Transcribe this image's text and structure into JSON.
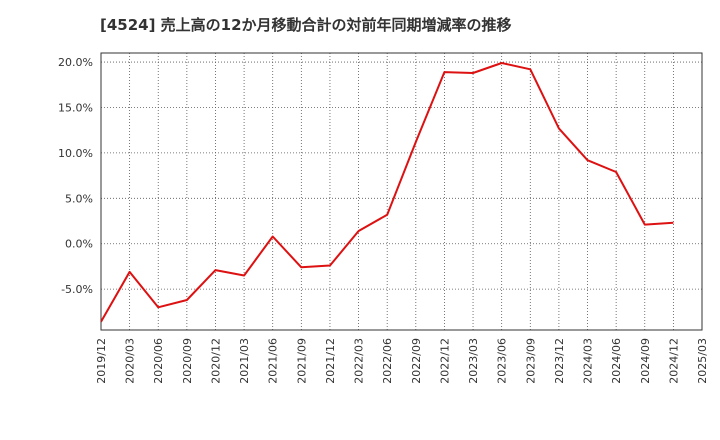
{
  "title": "[4524]  売上高の12か月移動合計の対前年同期増減率の推移",
  "chart_data": {
    "type": "line",
    "title": "[4524]  売上高の12か月移動合計の対前年同期増減率の推移",
    "xlabel": "",
    "ylabel": "",
    "ylim": [
      -9.5,
      21.0
    ],
    "yticks": [
      20.0,
      15.0,
      10.0,
      5.0,
      0.0,
      -5.0
    ],
    "ytick_labels": [
      "20.0%",
      "15.0%",
      "10.0%",
      "5.0%",
      "0.0%",
      "-5.0%"
    ],
    "categories": [
      "2019/12",
      "2020/03",
      "2020/06",
      "2020/09",
      "2020/12",
      "2021/03",
      "2021/06",
      "2021/09",
      "2021/12",
      "2022/03",
      "2022/06",
      "2022/09",
      "2022/12",
      "2023/03",
      "2023/06",
      "2023/09",
      "2023/12",
      "2024/03",
      "2024/06",
      "2024/09",
      "2024/12",
      "2025/03"
    ],
    "grid": true,
    "series": [
      {
        "name": "売上高の12か月移動合計の対前年同期増減率",
        "color": "#dd1111",
        "values": [
          -8.6,
          -3.1,
          -7.0,
          -6.2,
          -2.9,
          -3.5,
          0.8,
          -2.6,
          -2.4,
          1.4,
          3.2,
          11.2,
          18.9,
          18.8,
          19.9,
          19.2,
          12.7,
          9.2,
          7.9,
          2.1,
          2.3,
          null
        ]
      }
    ]
  }
}
